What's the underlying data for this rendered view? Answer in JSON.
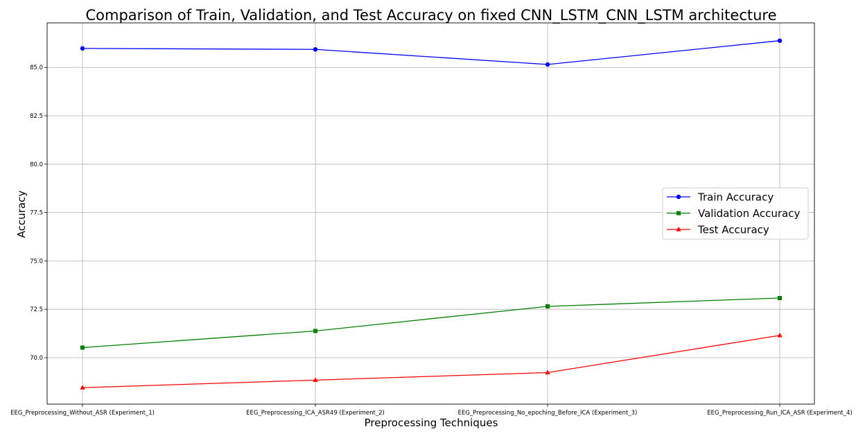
{
  "chart_data": {
    "type": "line",
    "title": "Comparison of Train, Validation, and Test Accuracy on fixed CNN_LSTM_CNN_LSTM architecture",
    "xlabel": "Preprocessing Techniques",
    "ylabel": "Accuracy",
    "categories": [
      "EEG_Preprocessing_Without_ASR (Experiment_1)",
      "EEG_Preprocessing_ICA_ASR49 (Experiment_2)",
      "EEG_Preprocessing_No_epoching_Before_ICA (Experiment_3)",
      "EEG_Preprocessing_Run_ICA_ASR (Experiment_4)"
    ],
    "series": [
      {
        "name": "Train Accuracy",
        "values": [
          85.98,
          85.93,
          85.15,
          86.38
        ],
        "color": "#0000ff",
        "marker": "circle"
      },
      {
        "name": "Validation Accuracy",
        "values": [
          70.52,
          71.38,
          72.65,
          73.08
        ],
        "color": "#008000",
        "marker": "square"
      },
      {
        "name": "Test Accuracy",
        "values": [
          68.45,
          68.84,
          69.23,
          71.15
        ],
        "color": "#ff0000",
        "marker": "triangle"
      }
    ],
    "ylim": [
      67.6,
      87.3
    ],
    "yticks": [
      "70.0",
      "72.5",
      "75.0",
      "77.5",
      "80.0",
      "82.5",
      "85.0"
    ],
    "grid": true,
    "legend_position": "center-right"
  }
}
